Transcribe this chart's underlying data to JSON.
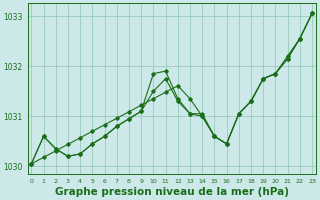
{
  "bg_color": "#cce8e8",
  "grid_color": "#99ccbb",
  "line_color": "#1a6e1a",
  "title": "Graphe pression niveau de la mer (hPa)",
  "title_fontsize": 7.5,
  "ylim": [
    1029.85,
    1033.25
  ],
  "xlim": [
    -0.3,
    23.3
  ],
  "yticks": [
    1030,
    1031,
    1032,
    1033
  ],
  "xticks": [
    0,
    1,
    2,
    3,
    4,
    5,
    6,
    7,
    8,
    9,
    10,
    11,
    12,
    13,
    14,
    15,
    16,
    17,
    18,
    19,
    20,
    21,
    22,
    23
  ],
  "series1": [
    1030.05,
    1030.6,
    1030.35,
    1030.2,
    1030.25,
    1030.45,
    1030.6,
    1030.8,
    1030.95,
    1031.1,
    1031.85,
    1031.9,
    1031.35,
    1031.05,
    1031.05,
    1030.6,
    1030.45,
    1031.05,
    1031.3,
    1031.75,
    1031.85,
    1032.2,
    1032.55,
    1033.05
  ],
  "series2": [
    1030.05,
    1030.6,
    1030.35,
    1030.2,
    1030.25,
    1030.45,
    1030.6,
    1030.8,
    1030.95,
    1031.1,
    1031.5,
    1031.75,
    1031.3,
    1031.05,
    1031.0,
    1030.6,
    1030.45,
    1031.05,
    1031.3,
    1031.75,
    1031.85,
    1032.15,
    1032.55,
    1033.05
  ],
  "series3": [
    1030.05,
    1030.18,
    1030.31,
    1030.44,
    1030.57,
    1030.7,
    1030.83,
    1030.96,
    1031.09,
    1031.22,
    1031.35,
    1031.48,
    1031.61,
    1031.35,
    1031.0,
    1030.6,
    1030.45,
    1031.05,
    1031.3,
    1031.75,
    1031.85,
    1032.15,
    1032.55,
    1033.05
  ]
}
